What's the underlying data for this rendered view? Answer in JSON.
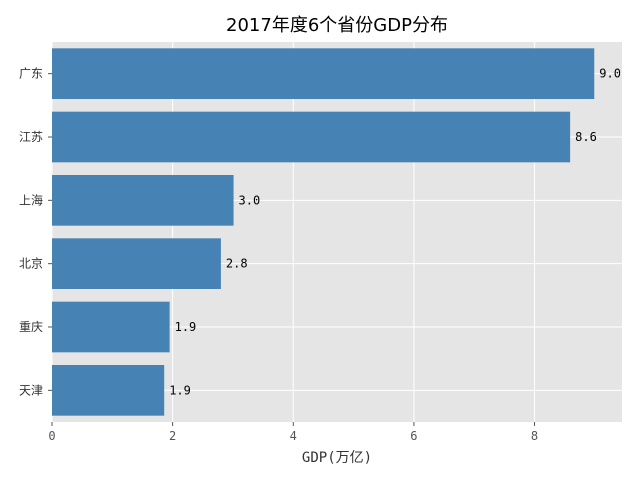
{
  "chart_data": {
    "type": "bar",
    "orientation": "horizontal",
    "title": "2017年度6个省份GDP分布",
    "xlabel": "GDP(万亿)",
    "ylabel": "",
    "categories": [
      "广东",
      "江苏",
      "上海",
      "北京",
      "重庆",
      "天津"
    ],
    "values": [
      8.99,
      8.59,
      3.01,
      2.8,
      1.95,
      1.86
    ],
    "data_labels": [
      "9.0",
      "8.6",
      "3.0",
      "2.8",
      "1.9",
      "1.9"
    ],
    "xlim": [
      0,
      9.45
    ],
    "xticks": [
      0,
      2,
      4,
      6,
      8
    ],
    "grid": true,
    "bar_color": "#4682b4",
    "background_color": "#e5e5e5",
    "grid_color": "#ffffff"
  }
}
